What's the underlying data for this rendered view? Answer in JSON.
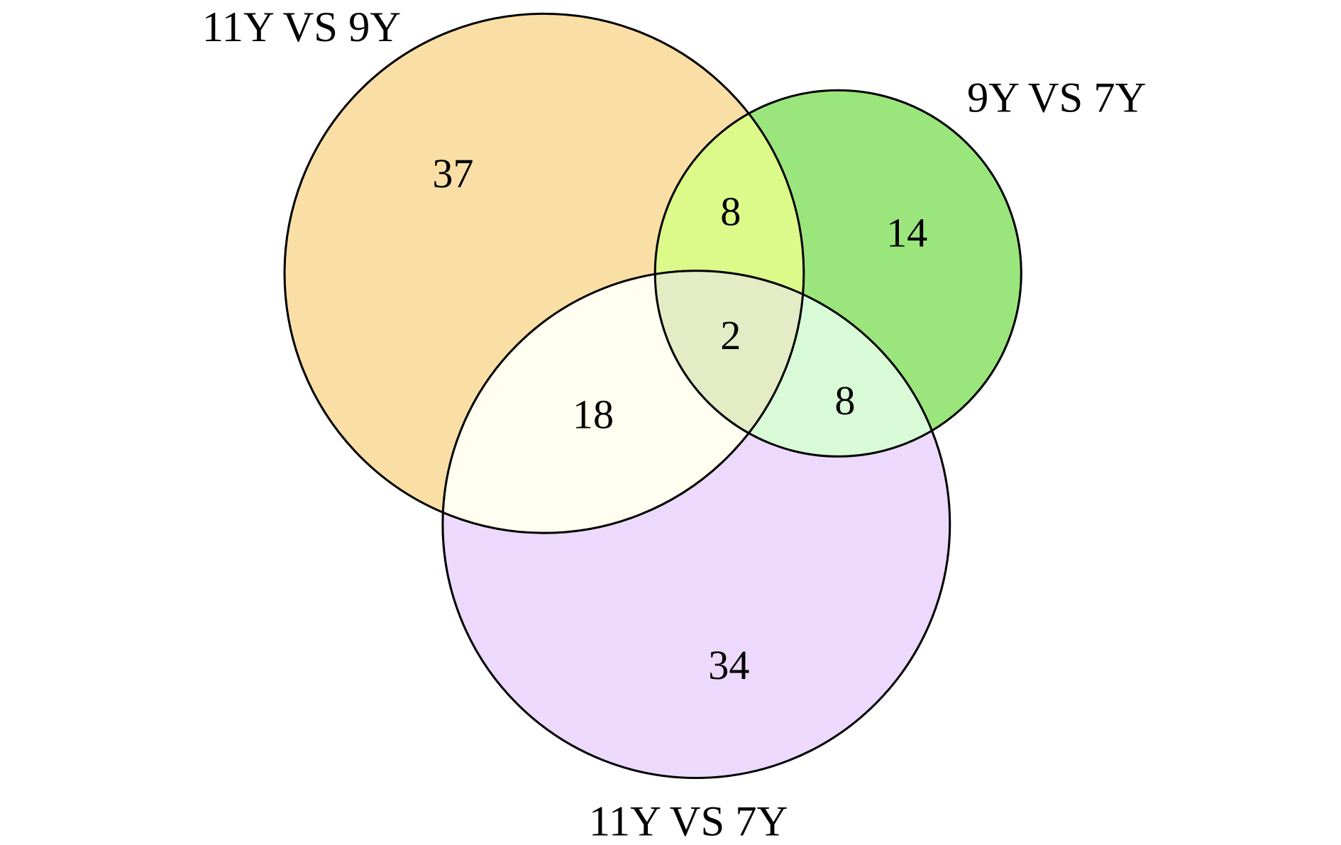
{
  "sets": [
    {
      "label": "11Y VS 9Y",
      "color": "#f9dfa5"
    },
    {
      "label": "9Y VS 7Y",
      "color": "#9be57d"
    },
    {
      "label": "11Y VS 7Y",
      "color": "#ecd9fc"
    }
  ],
  "regions": {
    "only_11v9": "37",
    "only_9v7": "14",
    "only_11v7": "34",
    "11v9_and_9v7": "8",
    "11v9_and_11v7": "18",
    "9v7_and_11v7": "8",
    "all_three": "2"
  },
  "region_colors": {
    "11v9_and_9v7": "#dcfa8a",
    "11v9_and_11v7": "#fffef0",
    "9v7_and_11v7": "#d8fad6",
    "all_three": "#e3ecc4"
  }
}
